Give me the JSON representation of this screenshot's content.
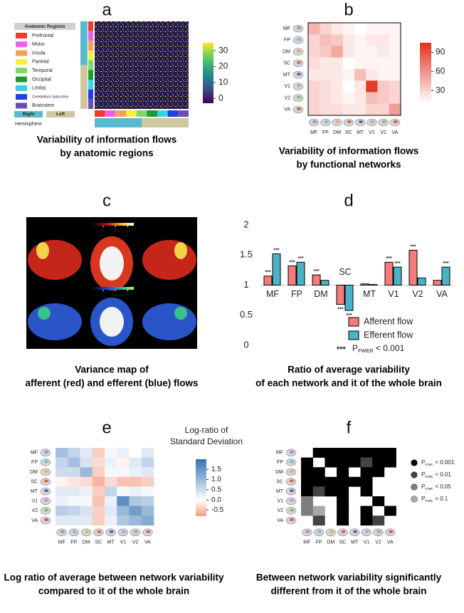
{
  "chart_data": [
    {
      "type": "heatmap",
      "panel_label": "a",
      "legend_title": "Anatomic Regions",
      "regions": [
        {
          "name": "Prefrontal",
          "color": "#f03a2a"
        },
        {
          "name": "Motor",
          "color": "#f05ef0"
        },
        {
          "name": "Insula",
          "color": "#f5a05a"
        },
        {
          "name": "Parietal",
          "color": "#f5f03a"
        },
        {
          "name": "Temporal",
          "color": "#7ed96a"
        },
        {
          "name": "Occipital",
          "color": "#1f9a2e"
        },
        {
          "name": "Limbic",
          "color": "#35d3e8"
        },
        {
          "name": "Cerebellum Subcortex",
          "color": "#1f3fe8"
        },
        {
          "name": "Brainstem",
          "color": "#6a4fb0"
        }
      ],
      "hemisphere": {
        "title": "Hemisphere",
        "items": [
          {
            "name": "Right",
            "color": "#5bb9cf"
          },
          {
            "name": "Left",
            "color": "#cfc7a0"
          }
        ]
      },
      "colorbar_lim": [
        -3,
        35
      ],
      "colorbar_ticks": [
        0,
        10,
        20,
        30
      ],
      "caption": [
        "Variability of information flows",
        "by anatomic regions"
      ]
    },
    {
      "type": "heatmap",
      "panel_label": "b",
      "categories": [
        "MF",
        "FP",
        "DM",
        "SC",
        "MT",
        "V1",
        "V2",
        "VA"
      ],
      "category_colors": [
        "#8e6cc4",
        "#4fb3e3",
        "#e5a33b",
        "#d2372b",
        "#263c9a",
        "#c57ad4",
        "#5cb846",
        "#b83228"
      ],
      "values": [
        [
          45,
          30,
          20,
          15,
          10,
          15,
          15,
          15
        ],
        [
          30,
          40,
          35,
          20,
          15,
          20,
          20,
          15
        ],
        [
          30,
          35,
          50,
          20,
          15,
          15,
          20,
          15
        ],
        [
          25,
          20,
          20,
          10,
          15,
          15,
          15,
          15
        ],
        [
          20,
          20,
          20,
          15,
          40,
          20,
          15,
          15
        ],
        [
          30,
          25,
          20,
          10,
          20,
          100,
          35,
          30
        ],
        [
          30,
          25,
          20,
          15,
          20,
          40,
          35,
          30
        ],
        [
          30,
          25,
          25,
          20,
          20,
          30,
          30,
          55
        ]
      ],
      "colorbar_lim": [
        10,
        105
      ],
      "colorbar_ticks": [
        30,
        60,
        90
      ],
      "caption": [
        "Variability of information flows",
        "by functional networks"
      ]
    },
    {
      "type": "image",
      "panel_label": "c",
      "colorbar_top": {
        "lim": [
          0,
          70
        ],
        "ticks": [
          20,
          40,
          60
        ]
      },
      "colorbar_bottom": {
        "lim": [
          0,
          70
        ],
        "ticks": [
          20,
          40,
          60
        ]
      },
      "caption": [
        "Variance map of",
        "afferent (red) and efferent (blue) flows"
      ]
    },
    {
      "type": "bar",
      "panel_label": "d",
      "categories": [
        "MF",
        "FP",
        "DM",
        "SC",
        "MT",
        "V1",
        "V2",
        "VA"
      ],
      "series": [
        {
          "name": "Afferent flow",
          "color": "#f47c7c",
          "values": [
            1.15,
            1.32,
            1.17,
            0.68,
            1.02,
            1.38,
            1.58,
            1.08
          ],
          "stars": [
            "***",
            "***",
            "***",
            "***",
            null,
            "***",
            "***",
            null
          ]
        },
        {
          "name": "Efferent flow",
          "color": "#4bb3c8",
          "values": [
            1.52,
            1.38,
            1.08,
            0.58,
            1.01,
            1.3,
            1.12,
            1.3
          ],
          "stars": [
            "***",
            "***",
            null,
            "***",
            null,
            "***",
            null,
            "***"
          ]
        }
      ],
      "ylim": [
        0,
        2
      ],
      "yticks": [
        0,
        0.5,
        1,
        1.5,
        2
      ],
      "baseline": 1,
      "legend_note": {
        "stars": "***",
        "p": "P",
        "sub": "FWER",
        "rest": "< 0.001"
      },
      "caption": [
        "Ratio of average variability",
        "of each network and it of the whole brain"
      ]
    },
    {
      "type": "heatmap",
      "panel_label": "e",
      "categories": [
        "MF",
        "FP",
        "DM",
        "SC",
        "MT",
        "V1",
        "V2",
        "VA"
      ],
      "category_colors": [
        "#8e6cc4",
        "#4fb3e3",
        "#e5a33b",
        "#d2372b",
        "#263c9a",
        "#c57ad4",
        "#5cb846",
        "#b83228"
      ],
      "values": [
        [
          0.9,
          0.6,
          0.3,
          -0.4,
          0.1,
          0.2,
          0.0,
          0.3
        ],
        [
          0.6,
          0.9,
          0.4,
          -0.3,
          0.2,
          -0.1,
          0.3,
          0.6
        ],
        [
          0.5,
          0.5,
          1.0,
          -0.4,
          0.1,
          0.1,
          0.2,
          0.3
        ],
        [
          -0.1,
          -0.2,
          -0.3,
          -0.6,
          -0.3,
          -0.5,
          -0.5,
          -0.4
        ],
        [
          0.3,
          0.3,
          0.2,
          -0.4,
          0.6,
          0.1,
          0.2,
          0.1
        ],
        [
          0.2,
          0.1,
          0.1,
          -0.5,
          0.2,
          1.6,
          0.8,
          0.7
        ],
        [
          0.7,
          0.6,
          0.4,
          -0.4,
          0.3,
          1.0,
          1.4,
          1.0
        ],
        [
          0.3,
          0.3,
          0.3,
          -0.4,
          0.2,
          0.8,
          1.0,
          1.2
        ]
      ],
      "colorbar_title": [
        "Log-ratio of",
        "Standard Deviation"
      ],
      "colorbar_lim": [
        -0.8,
        2.0
      ],
      "colorbar_ticks": [
        1.5,
        {
          "value": 1,
          "label": "1.0"
        },
        0.5,
        {
          "value": 0,
          "label": "0.0"
        },
        -0.5
      ],
      "caption": [
        "Log ratio of average between network variability",
        "compared to it of the whole brain"
      ]
    },
    {
      "type": "heatmap",
      "panel_label": "f",
      "categories": [
        "MF",
        "FP",
        "DM",
        "SC",
        "MT",
        "V1",
        "V2",
        "VA"
      ],
      "category_colors": [
        "#8e6cc4",
        "#4fb3e3",
        "#e5a33b",
        "#d2372b",
        "#263c9a",
        "#c57ad4",
        "#5cb846",
        "#b83228"
      ],
      "values": [
        [
          null,
          0.001,
          0.001,
          0.001,
          0.001,
          0.001,
          0.001,
          0.001
        ],
        [
          0.001,
          null,
          0.001,
          0.001,
          0.001,
          0.01,
          0.001,
          0.001
        ],
        [
          0.001,
          0.001,
          null,
          0.001,
          null,
          0.001,
          0.001,
          null
        ],
        [
          0.001,
          0.001,
          0.001,
          0.001,
          0.001,
          0.001,
          null,
          null
        ],
        [
          0.001,
          0.01,
          0.001,
          0.001,
          null,
          0.001,
          null,
          null
        ],
        [
          0.05,
          null,
          null,
          0.001,
          null,
          null,
          0.001,
          null
        ],
        [
          0.05,
          0.1,
          null,
          0.001,
          null,
          0.001,
          null,
          0.001
        ],
        [
          null,
          0.01,
          null,
          0.001,
          null,
          0.001,
          0.01,
          null
        ]
      ],
      "legend": [
        {
          "value": 0.001,
          "color": "#000000",
          "p": "P",
          "sub": "FWE",
          "rest": "< 0.001"
        },
        {
          "value": 0.01,
          "color": "#444444",
          "p": "P",
          "sub": "FWE",
          "rest": "< 0.01"
        },
        {
          "value": 0.05,
          "color": "#7d7d7d",
          "p": "P",
          "sub": "FWE",
          "rest": "< 0.05"
        },
        {
          "value": 0.1,
          "color": "#a8a8a8",
          "p": "P",
          "sub": "FWE",
          "rest": "< 0.1"
        }
      ],
      "caption": [
        "Between network variability significantly",
        "different from it of the whole brain"
      ]
    }
  ]
}
